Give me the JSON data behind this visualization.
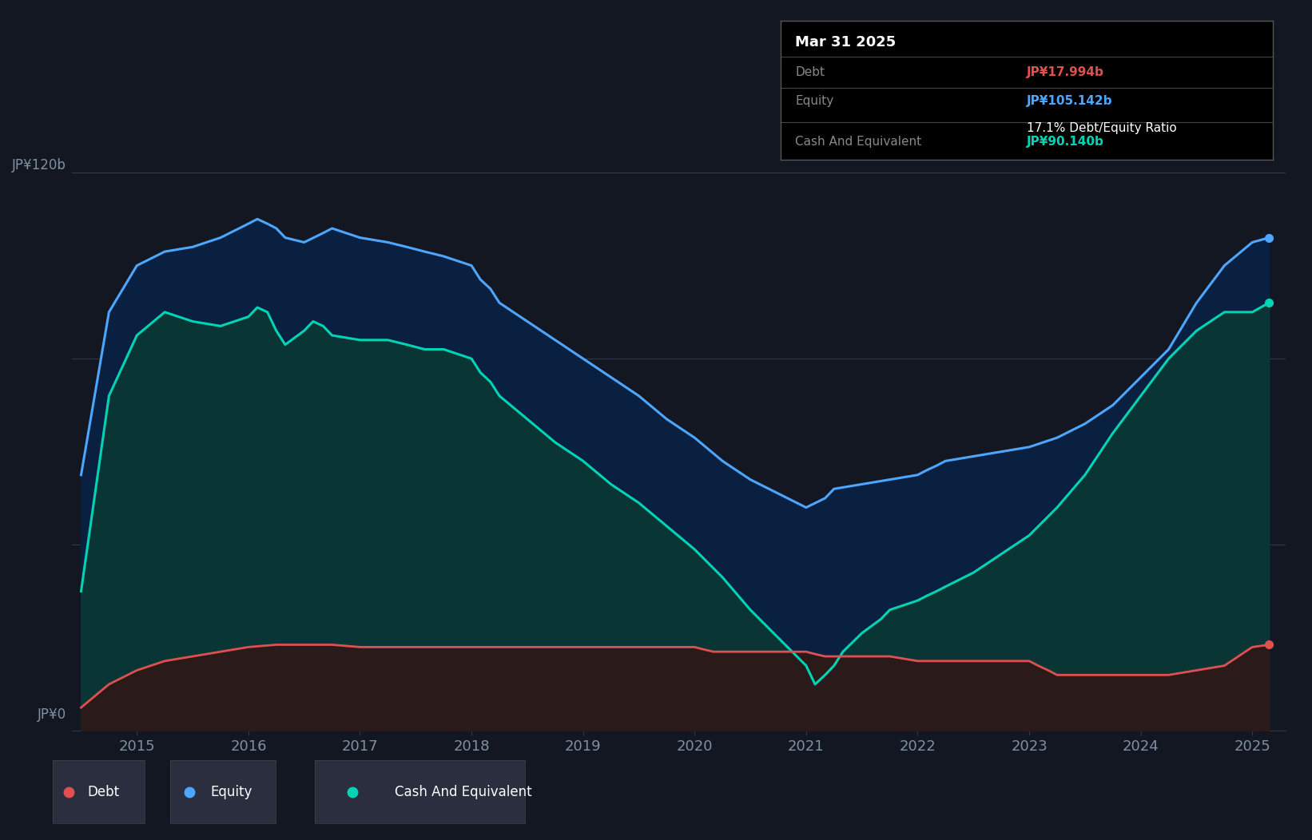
{
  "bg_color": "#131722",
  "plot_bg_color": "#131722",
  "ylabel_120": "JP¥120b",
  "ylabel_0": "JP¥0",
  "x_years": [
    2015,
    2016,
    2017,
    2018,
    2019,
    2020,
    2021,
    2022,
    2023,
    2024,
    2025
  ],
  "tooltip_title": "Mar 31 2025",
  "tooltip_debt_label": "Debt",
  "tooltip_debt_value": "JP¥17.994b",
  "tooltip_equity_label": "Equity",
  "tooltip_equity_value": "JP¥105.142b",
  "tooltip_ratio": "17.1% Debt/Equity Ratio",
  "tooltip_cash_label": "Cash And Equivalent",
  "tooltip_cash_value": "JP¥90.140b",
  "debt_color": "#e05050",
  "equity_color": "#4da6ff",
  "cash_color": "#00d4b4",
  "equity_fill_color": "#0a2040",
  "cash_fill_color": "#0a3535",
  "debt_fill_color": "#2a1a1a",
  "legend_labels": [
    "Debt",
    "Equity",
    "Cash And Equivalent"
  ],
  "equity_data": {
    "years": [
      2014.5,
      2014.75,
      2015.0,
      2015.25,
      2015.5,
      2015.75,
      2016.0,
      2016.08,
      2016.17,
      2016.25,
      2016.33,
      2016.5,
      2016.67,
      2016.75,
      2017.0,
      2017.25,
      2017.42,
      2017.58,
      2017.75,
      2018.0,
      2018.08,
      2018.17,
      2018.25,
      2018.5,
      2018.75,
      2019.0,
      2019.25,
      2019.5,
      2019.75,
      2020.0,
      2020.25,
      2020.5,
      2020.75,
      2021.0,
      2021.17,
      2021.25,
      2021.5,
      2021.75,
      2022.0,
      2022.08,
      2022.17,
      2022.25,
      2022.5,
      2022.75,
      2023.0,
      2023.25,
      2023.5,
      2023.75,
      2024.0,
      2024.25,
      2024.5,
      2024.75,
      2025.0,
      2025.15
    ],
    "values": [
      55,
      90,
      100,
      103,
      104,
      106,
      109,
      110,
      109,
      108,
      106,
      105,
      107,
      108,
      106,
      105,
      104,
      103,
      102,
      100,
      97,
      95,
      92,
      88,
      84,
      80,
      76,
      72,
      67,
      63,
      58,
      54,
      51,
      48,
      50,
      52,
      53,
      54,
      55,
      56,
      57,
      58,
      59,
      60,
      61,
      63,
      66,
      70,
      76,
      82,
      92,
      100,
      105,
      106
    ]
  },
  "cash_data": {
    "years": [
      2014.5,
      2014.75,
      2015.0,
      2015.25,
      2015.5,
      2015.75,
      2016.0,
      2016.08,
      2016.17,
      2016.25,
      2016.33,
      2016.5,
      2016.58,
      2016.67,
      2016.75,
      2017.0,
      2017.25,
      2017.42,
      2017.58,
      2017.75,
      2018.0,
      2018.08,
      2018.17,
      2018.25,
      2018.5,
      2018.75,
      2019.0,
      2019.25,
      2019.5,
      2019.75,
      2020.0,
      2020.25,
      2020.5,
      2020.75,
      2021.0,
      2021.08,
      2021.17,
      2021.25,
      2021.33,
      2021.5,
      2021.67,
      2021.75,
      2022.0,
      2022.08,
      2022.17,
      2022.25,
      2022.5,
      2022.75,
      2023.0,
      2023.25,
      2023.5,
      2023.75,
      2024.0,
      2024.25,
      2024.5,
      2024.75,
      2025.0,
      2025.15
    ],
    "values": [
      30,
      72,
      85,
      90,
      88,
      87,
      89,
      91,
      90,
      86,
      83,
      86,
      88,
      87,
      85,
      84,
      84,
      83,
      82,
      82,
      80,
      77,
      75,
      72,
      67,
      62,
      58,
      53,
      49,
      44,
      39,
      33,
      26,
      20,
      14,
      10,
      12,
      14,
      17,
      21,
      24,
      26,
      28,
      29,
      30,
      31,
      34,
      38,
      42,
      48,
      55,
      64,
      72,
      80,
      86,
      90,
      90,
      92
    ]
  },
  "debt_data": {
    "years": [
      2014.5,
      2014.75,
      2015.0,
      2015.25,
      2015.5,
      2015.75,
      2016.0,
      2016.25,
      2016.5,
      2016.75,
      2017.0,
      2017.25,
      2017.5,
      2017.75,
      2018.0,
      2018.25,
      2018.5,
      2018.75,
      2019.0,
      2019.25,
      2019.5,
      2019.75,
      2020.0,
      2020.08,
      2020.17,
      2020.25,
      2020.5,
      2020.75,
      2021.0,
      2021.08,
      2021.17,
      2021.25,
      2021.5,
      2021.75,
      2022.0,
      2022.25,
      2022.5,
      2022.75,
      2023.0,
      2023.08,
      2023.17,
      2023.25,
      2023.5,
      2023.75,
      2024.0,
      2024.25,
      2024.5,
      2024.75,
      2025.0,
      2025.15
    ],
    "values": [
      5,
      10,
      13,
      15,
      16,
      17,
      18,
      18.5,
      18.5,
      18.5,
      18,
      18,
      18,
      18,
      18,
      18,
      18,
      18,
      18,
      18,
      18,
      18,
      18,
      17.5,
      17,
      17,
      17,
      17,
      17,
      16.5,
      16,
      16,
      16,
      16,
      15,
      15,
      15,
      15,
      15,
      14,
      13,
      12,
      12,
      12,
      12,
      12,
      13,
      14,
      18,
      18.5
    ]
  },
  "ylim": [
    0,
    130
  ],
  "xlim": [
    2014.42,
    2025.3
  ],
  "grid_color": "#2a2f3e",
  "tick_color": "#8090a0",
  "line_color": "#303848"
}
